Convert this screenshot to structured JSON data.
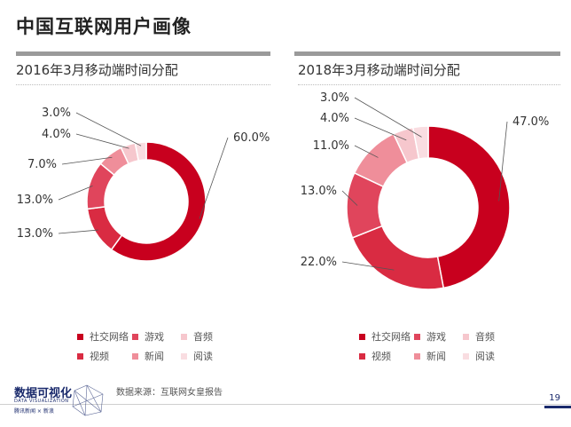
{
  "page": {
    "title": "中国互联网用户画像",
    "source": "数据来源：互联网女皇报告",
    "page_number": "19",
    "logo_main": "数据可视化",
    "logo_sub": "DATA VISUALIZATION",
    "logo_brand": "腾讯新闻 × 新浪"
  },
  "legend": [
    {
      "label": "社交网络",
      "color": "#c8001e"
    },
    {
      "label": "游戏",
      "color": "#e0455c"
    },
    {
      "label": "音频",
      "color": "#f6c7cd"
    },
    {
      "label": "视频",
      "color": "#d92b42"
    },
    {
      "label": "新闻",
      "color": "#ef8e9a"
    },
    {
      "label": "阅读",
      "color": "#f9dde1"
    }
  ],
  "chart_data": [
    {
      "type": "pie",
      "title": "2016年3月移动端时间分配",
      "categories": [
        "社交网络",
        "视频",
        "游戏",
        "新闻",
        "音频",
        "阅读"
      ],
      "values": [
        60.0,
        13.0,
        13.0,
        7.0,
        4.0,
        3.0
      ],
      "labels": [
        "60.0%",
        "13.0%",
        "13.0%",
        "7.0%",
        "4.0%",
        "3.0%"
      ],
      "colors": [
        "#c8001e",
        "#d92b42",
        "#e0455c",
        "#ef8e9a",
        "#f6c7cd",
        "#f9dde1"
      ]
    },
    {
      "type": "pie",
      "title": "2018年3月移动端时间分配",
      "categories": [
        "社交网络",
        "视频",
        "游戏",
        "新闻",
        "音频",
        "阅读"
      ],
      "values": [
        47.0,
        22.0,
        13.0,
        11.0,
        4.0,
        3.0
      ],
      "labels": [
        "47.0%",
        "22.0%",
        "13.0%",
        "11.0%",
        "4.0%",
        "3.0%"
      ],
      "colors": [
        "#c8001e",
        "#d92b42",
        "#e0455c",
        "#ef8e9a",
        "#f6c7cd",
        "#f9dde1"
      ]
    }
  ]
}
